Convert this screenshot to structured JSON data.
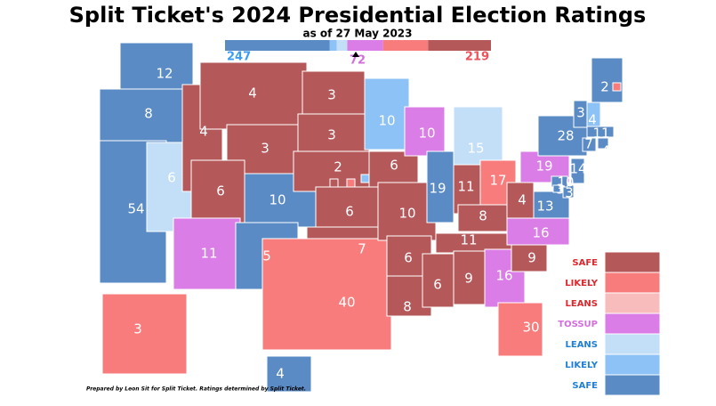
{
  "header": {
    "title": "Split Ticket's 2024 Presidential Election Ratings",
    "subtitle": "as of 27 May 2023"
  },
  "tally": {
    "dem": 247,
    "tossup": 72,
    "rep": 219,
    "dem_color": "#3b9cf2",
    "tossup_color": "#d46ee0",
    "rep_color": "#f0505a"
  },
  "legend": {
    "items": [
      {
        "label": "SAFE",
        "color": "#b5585a",
        "text_color": "#e0262d"
      },
      {
        "label": "LIKELY",
        "color": "#f87c7c",
        "text_color": "#e0262d"
      },
      {
        "label": "LEANS",
        "color": "#f9bcbc",
        "text_color": "#e0262d"
      },
      {
        "label": "TOSSUP",
        "color": "#db7de6",
        "text_color": "#d46ee0"
      },
      {
        "label": "LEANS",
        "color": "#c3dff8",
        "text_color": "#1f7fd8"
      },
      {
        "label": "LIKELY",
        "color": "#8cc2f5",
        "text_color": "#1f7fd8"
      },
      {
        "label": "SAFE",
        "color": "#5a8bc4",
        "text_color": "#1f7fd8"
      }
    ]
  },
  "states": [
    {
      "votes": 12,
      "color": "#5a8bc4"
    },
    {
      "votes": 8,
      "color": "#5a8bc4"
    },
    {
      "votes": 54,
      "color": "#5a8bc4"
    },
    {
      "votes": 6,
      "color": "#c3dff8"
    },
    {
      "votes": 4,
      "color": "#b5585a"
    },
    {
      "votes": 4,
      "color": "#b5585a"
    },
    {
      "votes": 3,
      "color": "#b5585a"
    },
    {
      "votes": 6,
      "color": "#b5585a"
    },
    {
      "votes": 10,
      "color": "#5a8bc4"
    },
    {
      "votes": 11,
      "color": "#db7de6"
    },
    {
      "votes": 5,
      "color": "#5a8bc4"
    },
    {
      "votes": 3,
      "color": "#b5585a"
    },
    {
      "votes": 3,
      "color": "#b5585a"
    },
    {
      "votes": 2,
      "color": "#b5585a"
    },
    {
      "votes": 6,
      "color": "#b5585a"
    },
    {
      "votes": 7,
      "color": "#b5585a"
    },
    {
      "votes": 40,
      "color": "#f87c7c"
    },
    {
      "votes": 10,
      "color": "#8cc2f5"
    },
    {
      "votes": 6,
      "color": "#b5585a"
    },
    {
      "votes": 10,
      "color": "#b5585a"
    },
    {
      "votes": 6,
      "color": "#b5585a"
    },
    {
      "votes": 8,
      "color": "#b5585a"
    },
    {
      "votes": 10,
      "color": "#db7de6"
    },
    {
      "votes": 19,
      "color": "#5a8bc4"
    },
    {
      "votes": 15,
      "color": "#c3dff8"
    },
    {
      "votes": 11,
      "color": "#b5585a"
    },
    {
      "votes": 17,
      "color": "#f87c7c"
    },
    {
      "votes": 8,
      "color": "#b5585a"
    },
    {
      "votes": 11,
      "color": "#b5585a"
    },
    {
      "votes": 6,
      "color": "#b5585a"
    },
    {
      "votes": 9,
      "color": "#b5585a"
    },
    {
      "votes": 16,
      "color": "#db7de6"
    },
    {
      "votes": 30,
      "color": "#f87c7c"
    },
    {
      "votes": 9,
      "color": "#b5585a"
    },
    {
      "votes": 16,
      "color": "#db7de6"
    },
    {
      "votes": 13,
      "color": "#5a8bc4"
    },
    {
      "votes": 4,
      "color": "#b5585a"
    },
    {
      "votes": 19,
      "color": "#db7de6"
    },
    {
      "votes": 28,
      "color": "#5a8bc4"
    },
    {
      "votes": 2,
      "color": "#5a8bc4"
    },
    {
      "votes": 3,
      "color": "#5a8bc4"
    },
    {
      "votes": 4,
      "color": "#8cc2f5"
    },
    {
      "votes": 11,
      "color": "#5a8bc4"
    },
    {
      "votes": 7,
      "color": "#5a8bc4"
    },
    {
      "votes": 4,
      "color": "#5a8bc4"
    },
    {
      "votes": 14,
      "color": "#5a8bc4"
    },
    {
      "votes": 3,
      "color": "#5a8bc4"
    },
    {
      "votes": 10,
      "color": "#5a8bc4"
    },
    {
      "votes": 3,
      "color": "#5a8bc4"
    },
    {
      "votes": 3,
      "color": "#f87c7c"
    },
    {
      "votes": 4,
      "color": "#5a8bc4"
    }
  ],
  "footer": "Prepared by Leon Sit for Split Ticket. Ratings determined by Split Ticket."
}
